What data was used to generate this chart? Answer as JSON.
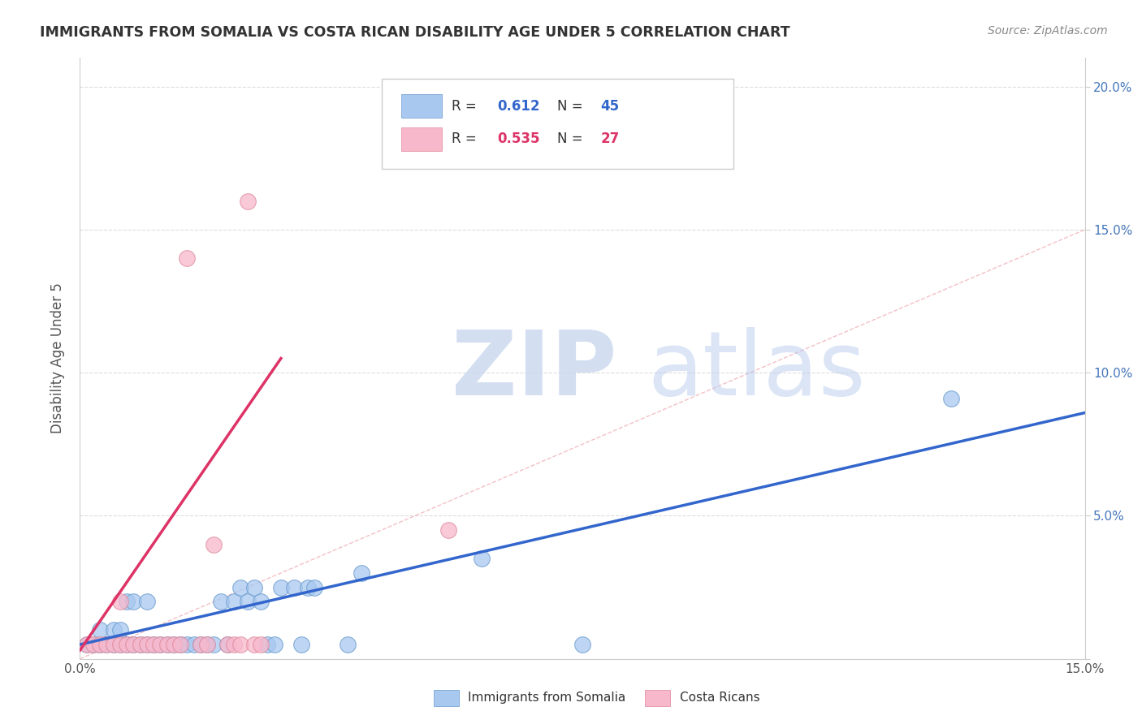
{
  "title": "IMMIGRANTS FROM SOMALIA VS COSTA RICAN DISABILITY AGE UNDER 5 CORRELATION CHART",
  "source": "Source: ZipAtlas.com",
  "ylabel": "Disability Age Under 5",
  "xlim": [
    0.0,
    0.15
  ],
  "ylim": [
    0.0,
    0.21
  ],
  "background_color": "#ffffff",
  "grid_color": "#dddddd",
  "somalia_color": "#a8c8f0",
  "somalia_edge_color": "#6699cc",
  "costa_rica_color": "#f8b8cc",
  "costa_rica_edge_color": "#dd8899",
  "somalia_line_color": "#3366cc",
  "costa_rica_line_color": "#dd3366",
  "diagonal_color": "#f0c0c0",
  "watermark_zip_color": "#d0dff0",
  "watermark_atlas_color": "#b8ccec",
  "somalia_points": [
    [
      0.001,
      0.005
    ],
    [
      0.002,
      0.005
    ],
    [
      0.003,
      0.005
    ],
    [
      0.003,
      0.01
    ],
    [
      0.004,
      0.005
    ],
    [
      0.005,
      0.005
    ],
    [
      0.005,
      0.01
    ],
    [
      0.006,
      0.005
    ],
    [
      0.006,
      0.01
    ],
    [
      0.007,
      0.005
    ],
    [
      0.007,
      0.02
    ],
    [
      0.008,
      0.005
    ],
    [
      0.008,
      0.02
    ],
    [
      0.009,
      0.005
    ],
    [
      0.01,
      0.005
    ],
    [
      0.01,
      0.02
    ],
    [
      0.011,
      0.005
    ],
    [
      0.012,
      0.005
    ],
    [
      0.013,
      0.005
    ],
    [
      0.014,
      0.005
    ],
    [
      0.015,
      0.005
    ],
    [
      0.016,
      0.005
    ],
    [
      0.017,
      0.005
    ],
    [
      0.018,
      0.005
    ],
    [
      0.019,
      0.005
    ],
    [
      0.02,
      0.005
    ],
    [
      0.021,
      0.02
    ],
    [
      0.022,
      0.005
    ],
    [
      0.023,
      0.02
    ],
    [
      0.024,
      0.025
    ],
    [
      0.025,
      0.02
    ],
    [
      0.026,
      0.025
    ],
    [
      0.027,
      0.02
    ],
    [
      0.028,
      0.005
    ],
    [
      0.029,
      0.005
    ],
    [
      0.03,
      0.025
    ],
    [
      0.032,
      0.025
    ],
    [
      0.033,
      0.005
    ],
    [
      0.034,
      0.025
    ],
    [
      0.035,
      0.025
    ],
    [
      0.04,
      0.005
    ],
    [
      0.042,
      0.03
    ],
    [
      0.06,
      0.035
    ],
    [
      0.075,
      0.005
    ],
    [
      0.13,
      0.091
    ]
  ],
  "costa_rica_points": [
    [
      0.001,
      0.005
    ],
    [
      0.002,
      0.005
    ],
    [
      0.003,
      0.005
    ],
    [
      0.004,
      0.005
    ],
    [
      0.005,
      0.005
    ],
    [
      0.006,
      0.005
    ],
    [
      0.006,
      0.02
    ],
    [
      0.007,
      0.005
    ],
    [
      0.008,
      0.005
    ],
    [
      0.009,
      0.005
    ],
    [
      0.01,
      0.005
    ],
    [
      0.011,
      0.005
    ],
    [
      0.012,
      0.005
    ],
    [
      0.013,
      0.005
    ],
    [
      0.014,
      0.005
    ],
    [
      0.015,
      0.005
    ],
    [
      0.016,
      0.14
    ],
    [
      0.018,
      0.005
    ],
    [
      0.019,
      0.005
    ],
    [
      0.02,
      0.04
    ],
    [
      0.022,
      0.005
    ],
    [
      0.023,
      0.005
    ],
    [
      0.024,
      0.005
    ],
    [
      0.025,
      0.16
    ],
    [
      0.026,
      0.005
    ],
    [
      0.027,
      0.005
    ],
    [
      0.055,
      0.045
    ]
  ],
  "somalia_line_x": [
    0.0,
    0.15
  ],
  "somalia_line_y": [
    0.005,
    0.086
  ],
  "costa_rica_line_x": [
    0.0,
    0.03
  ],
  "costa_rica_line_y": [
    0.003,
    0.105
  ],
  "legend_R1": "R = ",
  "legend_V1": "0.612",
  "legend_N1": "N = 45",
  "legend_R2": "R = ",
  "legend_V2": "0.535",
  "legend_N2": "N = 27"
}
